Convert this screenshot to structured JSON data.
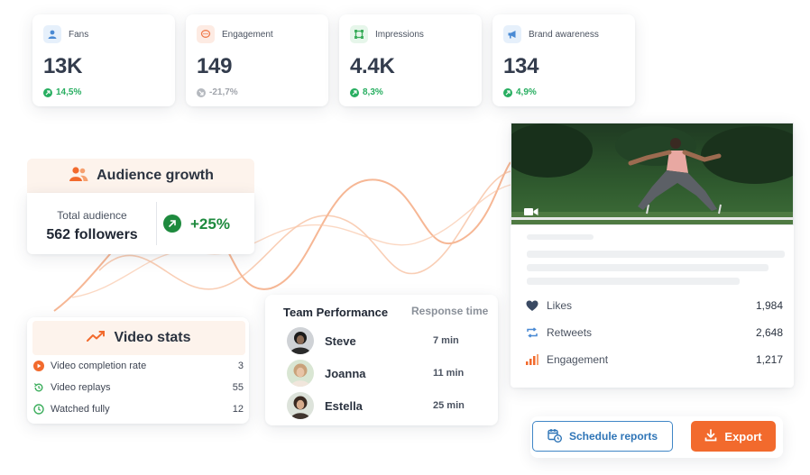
{
  "kpis": [
    {
      "label": "Fans",
      "value": "13K",
      "delta": "14,5%",
      "trend": "up",
      "icon": "users-icon",
      "icon_bg": "#e6f0fb",
      "icon_color": "#4a8ad4"
    },
    {
      "label": "Engagement",
      "value": "149",
      "delta": "-21,7%",
      "trend": "down",
      "icon": "chat-bubble-icon",
      "icon_bg": "#fdebe3",
      "icon_color": "#ef7a4b"
    },
    {
      "label": "Impressions",
      "value": "4.4K",
      "delta": "8,3%",
      "trend": "up",
      "icon": "frame-icon",
      "icon_bg": "#e6f6ea",
      "icon_color": "#3dae5d"
    },
    {
      "label": "Brand awareness",
      "value": "134",
      "delta": "4,9%",
      "trend": "up",
      "icon": "megaphone-icon",
      "icon_bg": "#e6f0fb",
      "icon_color": "#4a8ad4"
    }
  ],
  "audience_growth": {
    "title": "Audience growth",
    "total_label": "Total audience",
    "total_value": "562 followers",
    "growth": "+25%"
  },
  "video_stats": {
    "title": "Video stats",
    "rows": [
      {
        "label": "Video completion rate",
        "value": "3",
        "icon": "play-circle-icon"
      },
      {
        "label": "Video replays",
        "value": "55",
        "icon": "replay-icon"
      },
      {
        "label": "Watched fully",
        "value": "12",
        "icon": "check-circle-icon"
      }
    ]
  },
  "team_performance": {
    "title": "Team Performance",
    "response_header": "Response time",
    "members": [
      {
        "name": "Steve",
        "time": "7 min"
      },
      {
        "name": "Joanna",
        "time": "11 min"
      },
      {
        "name": "Estella",
        "time": "25 min"
      }
    ]
  },
  "post_metrics": [
    {
      "label": "Likes",
      "value": "1,984",
      "icon": "heart-icon"
    },
    {
      "label": "Retweets",
      "value": "2,648",
      "icon": "retweet-icon"
    },
    {
      "label": "Engagement",
      "value": "1,217",
      "icon": "bar-chart-icon"
    }
  ],
  "actions": {
    "schedule_label": "Schedule reports",
    "export_label": "Export"
  },
  "colors": {
    "accent_orange": "#f26a2d",
    "positive_green": "#27ae60",
    "growth_green": "#1e8a3e",
    "link_blue": "#2f75b7",
    "header_tint": "#fdf3ec"
  }
}
